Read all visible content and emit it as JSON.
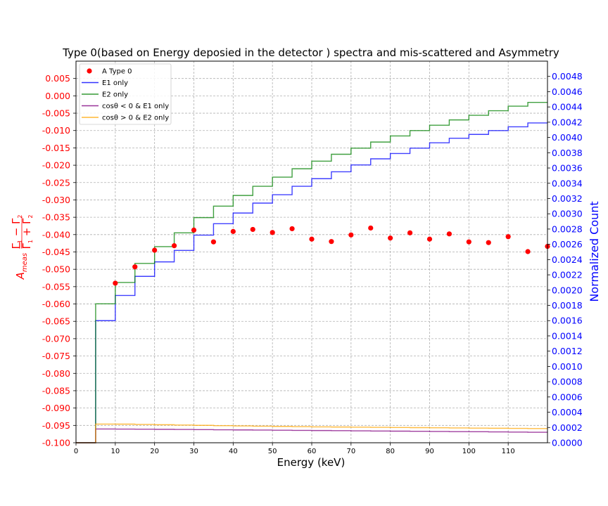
{
  "chart_data": {
    "type": "line",
    "title": "Type 0(based on Energy deposied in the detector ) spectra and mis-scattered and Asymmetry",
    "xlabel": "Energy (keV)",
    "ylabel_left": "A_meas = (Γ1−Γ2)/(Γ1+Γ2)",
    "ylabel_right": "Normalized Count",
    "xlim": [
      0,
      120
    ],
    "ylim_left": [
      -0.1,
      0.01
    ],
    "ylim_right": [
      0.0,
      0.005
    ],
    "grid": true,
    "legend_position": "top-left",
    "x_ticks": [
      "0",
      "10",
      "20",
      "30",
      "40",
      "50",
      "60",
      "70",
      "80",
      "90",
      "100",
      "110"
    ],
    "y_left_ticks": [
      "0.005",
      "0.000",
      "-0.005",
      "-0.010",
      "-0.015",
      "-0.020",
      "-0.025",
      "-0.030",
      "-0.035",
      "-0.040",
      "-0.045",
      "-0.050",
      "-0.055",
      "-0.060",
      "-0.065",
      "-0.070",
      "-0.075",
      "-0.080",
      "-0.085",
      "-0.090",
      "-0.095",
      "-0.100"
    ],
    "y_right_ticks": [
      "0.0000",
      "0.0002",
      "0.0004",
      "0.0006",
      "0.0008",
      "0.0010",
      "0.0012",
      "0.0014",
      "0.0016",
      "0.0018",
      "0.0020",
      "0.0022",
      "0.0024",
      "0.0026",
      "0.0028",
      "0.0030",
      "0.0032",
      "0.0034",
      "0.0036",
      "0.0038",
      "0.0040",
      "0.0042",
      "0.0044",
      "0.0046",
      "0.0048"
    ],
    "legend": [
      {
        "label": "A Type 0",
        "color": "#ff0000",
        "kind": "marker"
      },
      {
        "label": "E1 only",
        "color": "#0000ff",
        "kind": "line"
      },
      {
        "label": "E2 only",
        "color": "#008000",
        "kind": "line"
      },
      {
        "label": "cosθ < 0 & E1 only",
        "color": "#800080",
        "kind": "line"
      },
      {
        "label": "cosθ > 0 & E2 only",
        "color": "#ffa500",
        "kind": "line"
      }
    ],
    "scatter": {
      "name": "A Type 0",
      "axis": "left",
      "color": "#ff0000",
      "x": [
        10,
        15,
        20,
        25,
        30,
        35,
        40,
        45,
        50,
        55,
        60,
        65,
        70,
        75,
        80,
        85,
        90,
        95,
        100,
        105,
        110,
        115,
        120
      ],
      "y": [
        -0.054,
        -0.0493,
        -0.0445,
        -0.0432,
        -0.0387,
        -0.0421,
        -0.0391,
        -0.0385,
        -0.0394,
        -0.0383,
        -0.0413,
        -0.042,
        -0.0401,
        -0.0381,
        -0.041,
        -0.0395,
        -0.0413,
        -0.0398,
        -0.0421,
        -0.0423,
        -0.0406,
        -0.0449,
        -0.0434
      ]
    },
    "step_series": [
      {
        "name": "E1 only",
        "axis": "right",
        "color": "#0000ff",
        "edges": [
          0,
          5,
          10,
          15,
          20,
          25,
          30,
          35,
          40,
          45,
          50,
          55,
          60,
          65,
          70,
          75,
          80,
          85,
          90,
          95,
          100,
          105,
          110,
          115,
          120
        ],
        "values": [
          0.0,
          0.0016,
          0.00193,
          0.00218,
          0.00237,
          0.00252,
          0.00272,
          0.00287,
          0.00301,
          0.00314,
          0.00325,
          0.00336,
          0.00346,
          0.00355,
          0.00364,
          0.00372,
          0.00379,
          0.00386,
          0.00393,
          0.00399,
          0.00404,
          0.00409,
          0.00414,
          0.00419
        ]
      },
      {
        "name": "E2 only",
        "axis": "right",
        "color": "#008000",
        "edges": [
          0,
          5,
          10,
          15,
          20,
          25,
          30,
          35,
          40,
          45,
          50,
          55,
          60,
          65,
          70,
          75,
          80,
          85,
          90,
          95,
          100,
          105,
          110,
          115,
          120
        ],
        "values": [
          0.0,
          0.00182,
          0.0021,
          0.00235,
          0.00257,
          0.00275,
          0.00295,
          0.0031,
          0.00324,
          0.00336,
          0.00348,
          0.00359,
          0.00369,
          0.00378,
          0.00386,
          0.00394,
          0.00402,
          0.00409,
          0.00416,
          0.00423,
          0.00429,
          0.00435,
          0.00441,
          0.00446
        ]
      },
      {
        "name": "cosθ < 0 & E1 only",
        "axis": "right",
        "color": "#800080",
        "edges": [
          0,
          5,
          10,
          15,
          20,
          25,
          30,
          35,
          40,
          45,
          50,
          55,
          60,
          65,
          70,
          75,
          80,
          85,
          90,
          95,
          100,
          105,
          110,
          115,
          120
        ],
        "values": [
          0.0,
          0.00018,
          0.000179,
          0.000178,
          0.000176,
          0.000174,
          0.000172,
          0.00017,
          0.000168,
          0.000166,
          0.000164,
          0.000162,
          0.00016,
          0.000158,
          0.000156,
          0.000154,
          0.000152,
          0.00015,
          0.000148,
          0.000146,
          0.000144,
          0.000142,
          0.00014,
          0.000138
        ]
      },
      {
        "name": "cosθ > 0 & E2 only",
        "axis": "right",
        "color": "#ffa500",
        "edges": [
          0,
          5,
          10,
          15,
          20,
          25,
          30,
          35,
          40,
          45,
          50,
          55,
          60,
          65,
          70,
          75,
          80,
          85,
          90,
          95,
          100,
          105,
          110,
          115,
          120
        ],
        "values": [
          0.0,
          0.000245,
          0.000244,
          0.00024,
          0.000236,
          0.000232,
          0.000228,
          0.000224,
          0.00022,
          0.000217,
          0.000214,
          0.000211,
          0.000208,
          0.000206,
          0.000204,
          0.000202,
          0.0002,
          0.000198,
          0.000196,
          0.000194,
          0.000192,
          0.00019,
          0.000188,
          0.000186
        ]
      }
    ]
  }
}
